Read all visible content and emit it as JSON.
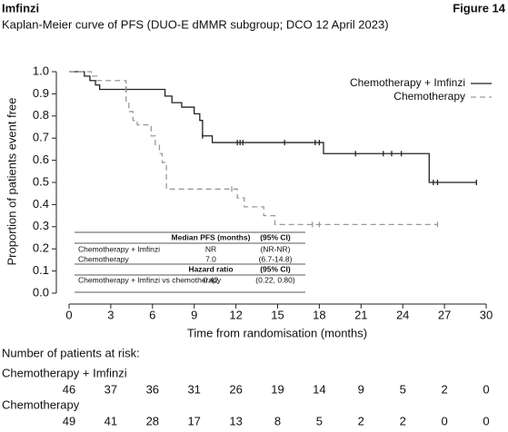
{
  "header": {
    "brand": "Imfinzi",
    "figure": "Figure 14"
  },
  "chart_data": {
    "type": "km",
    "title": "Kaplan-Meier curve of PFS (DUO-E dMMR subgroup; DCO 12 April 2023)",
    "x_label": "Time from randomisation (months)",
    "y_label": "Proportion of patients event free",
    "xlim": [
      0,
      30
    ],
    "xticks": [
      0,
      3,
      6,
      9,
      12,
      15,
      18,
      21,
      24,
      27,
      30
    ],
    "ylim": [
      0,
      1
    ],
    "yticks": [
      {
        "value": 0,
        "label": "0.0"
      },
      0.1,
      0.2,
      0.3,
      0.4,
      0.5,
      0.6,
      0.7,
      0.8,
      0.9,
      {
        "value": 1,
        "label": "1.0"
      }
    ],
    "legend": "upper right",
    "series": [
      {
        "name": "Chemotherapy + Imfinzi",
        "color": "#222222",
        "dash": false,
        "x": [
          0,
          1.1,
          1.5,
          1.9,
          2.2,
          6.9,
          7.4,
          8.1,
          9.0,
          9.4,
          9.6,
          10.3,
          18.3,
          25.9,
          29.3
        ],
        "values": [
          1.0,
          0.98,
          0.96,
          0.94,
          0.92,
          0.89,
          0.86,
          0.84,
          0.81,
          0.78,
          0.71,
          0.68,
          0.63,
          0.5,
          0.5
        ],
        "censored": {
          "x": [
            4.1,
            9.6,
            12.1,
            12.3,
            12.5,
            15.5,
            17.7,
            18.0,
            20.6,
            22.6,
            23.2,
            23.9,
            26.2,
            26.5,
            29.3
          ],
          "values": [
            0.92,
            0.71,
            0.68,
            0.68,
            0.68,
            0.68,
            0.68,
            0.68,
            0.63,
            0.63,
            0.63,
            0.63,
            0.5,
            0.5,
            0.5
          ]
        }
      },
      {
        "name": "Chemotherapy",
        "color": "#999999",
        "dash": true,
        "x": [
          0,
          1.6,
          2.0,
          4.1,
          4.3,
          4.6,
          4.9,
          5.9,
          6.2,
          6.5,
          6.7,
          7.0,
          12.1,
          12.6,
          14.0,
          14.8,
          26.5
        ],
        "values": [
          1.0,
          0.98,
          0.96,
          0.86,
          0.82,
          0.78,
          0.76,
          0.71,
          0.67,
          0.63,
          0.59,
          0.47,
          0.43,
          0.39,
          0.35,
          0.31,
          0.31
        ],
        "censored": {
          "x": [
            11.7,
            17.5,
            18.0,
            26.5
          ],
          "values": [
            0.47,
            0.31,
            0.31,
            0.31
          ]
        }
      }
    ],
    "stats_table": {
      "median_header": [
        "Median PFS (months)",
        "(95% CI)"
      ],
      "median_rows": [
        [
          "Chemotherapy + Imfinzi",
          "NR",
          "(NR-NR)"
        ],
        [
          "Chemotherapy",
          "7.0",
          "(6.7-14.8)"
        ]
      ],
      "hr_header": [
        "Hazard ratio",
        "(95% CI)"
      ],
      "hr_rows": [
        [
          "Chemotherapy + Imfinzi vs chemotherapy",
          "0.42",
          "(0.22, 0.80)"
        ]
      ]
    },
    "risk_table": {
      "title": "Number of patients at risk:",
      "groups": [
        {
          "name": "Chemotherapy + Imfinzi",
          "values": [
            46,
            37,
            36,
            31,
            26,
            19,
            14,
            9,
            5,
            2,
            0
          ]
        },
        {
          "name": "Chemotherapy",
          "values": [
            49,
            41,
            28,
            17,
            13,
            8,
            5,
            2,
            2,
            0,
            0
          ]
        }
      ]
    }
  }
}
